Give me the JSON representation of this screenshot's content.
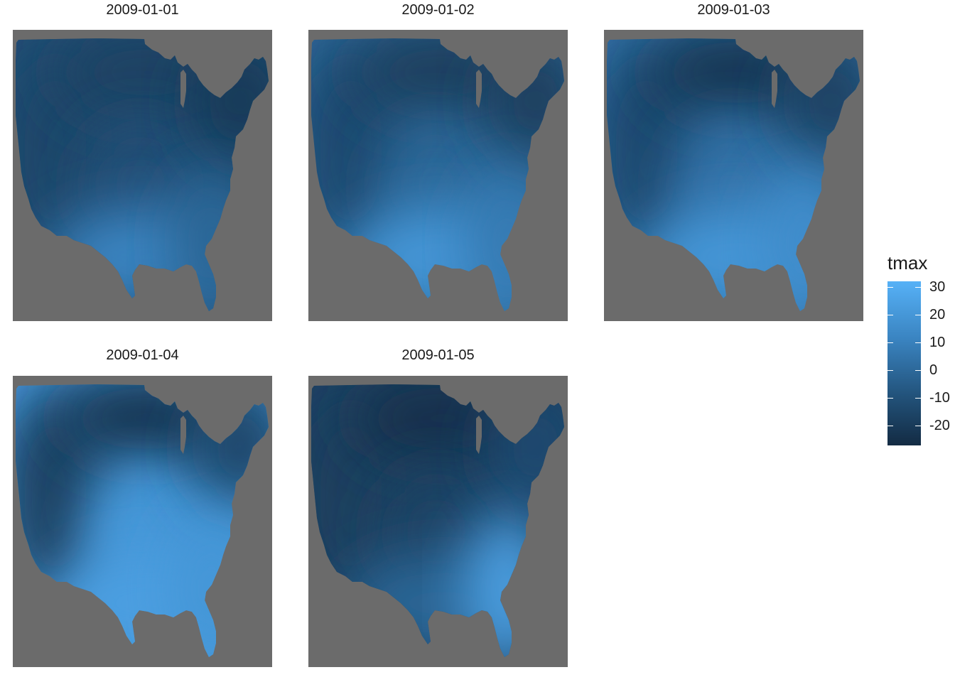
{
  "facets": [
    {
      "title": "2009-01-01",
      "west": 0.35,
      "north": 0.3,
      "center": 0.45,
      "south": 0.75,
      "east": 0.2,
      "southeast": 0.6
    },
    {
      "title": "2009-01-02",
      "west": 0.4,
      "north": 0.25,
      "center": 0.6,
      "south": 0.85,
      "east": 0.25,
      "southeast": 0.7
    },
    {
      "title": "2009-01-03",
      "west": 0.4,
      "north": 0.15,
      "center": 0.65,
      "south": 0.85,
      "east": 0.3,
      "southeast": 0.8
    },
    {
      "title": "2009-01-04",
      "west": 0.3,
      "north": 0.15,
      "center": 0.85,
      "south": 0.9,
      "east": 0.35,
      "southeast": 0.85
    },
    {
      "title": "2009-01-05",
      "west": 0.25,
      "north": 0.1,
      "center": 0.3,
      "south": 0.6,
      "east": 0.4,
      "southeast": 0.9
    }
  ],
  "legend": {
    "title": "tmax",
    "ticks": [
      30,
      20,
      10,
      0,
      -10,
      -20
    ],
    "tick_labels": [
      "30",
      "20",
      "10",
      "0",
      "-10",
      "-20"
    ],
    "min": -26,
    "max": 33,
    "colors": {
      "low": "#132b43",
      "high": "#56b1f7",
      "na": "#6b6b6b"
    }
  }
}
